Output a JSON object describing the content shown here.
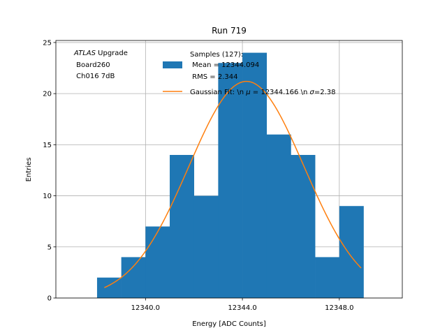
{
  "chart_data": {
    "type": "bar",
    "title": "Run 719",
    "xlabel": "Energy [ADC Counts]",
    "ylabel": "Entries",
    "xlim": [
      10340.8,
      12350.8
    ],
    "ylim": [
      0,
      25.2
    ],
    "xticks": [
      "12340.0",
      "12344.0",
      "12348.0"
    ],
    "yticks": [
      "0",
      "5",
      "10",
      "15",
      "20",
      "25"
    ],
    "grid": true,
    "bin_edges": [
      12338,
      12339,
      12340,
      12341,
      12342,
      12343,
      12344,
      12345,
      12346,
      12347,
      12348,
      12349
    ],
    "values": [
      2,
      4,
      7,
      14,
      10,
      23,
      24,
      16,
      14,
      4,
      9
    ],
    "bar_color": "#1f77b4",
    "fit_color": "#ff7f0e",
    "fit": {
      "mean": 12344.166,
      "sigma": 2.38,
      "amplitude": 21.2,
      "x_range": [
        12338.3,
        12348.9
      ]
    },
    "annotation": {
      "lines": [
        "ATLAS Upgrade",
        " Board260",
        " Ch016 7dB"
      ],
      "italic_word": "ATLAS",
      "rest_first_line": " Upgrade"
    },
    "legend": {
      "position": "top-center",
      "entries": [
        {
          "kind": "patch",
          "lines": [
            "Samples (127):",
            " Mean = 12344.094",
            " RMS = 2.344"
          ]
        },
        {
          "kind": "line",
          "prefix": "Gaussian Fit: \\n ",
          "mu": "μ",
          "middle": " = 12344.166 \\n ",
          "sigma": "σ",
          "suffix": "=2.38"
        }
      ]
    }
  }
}
